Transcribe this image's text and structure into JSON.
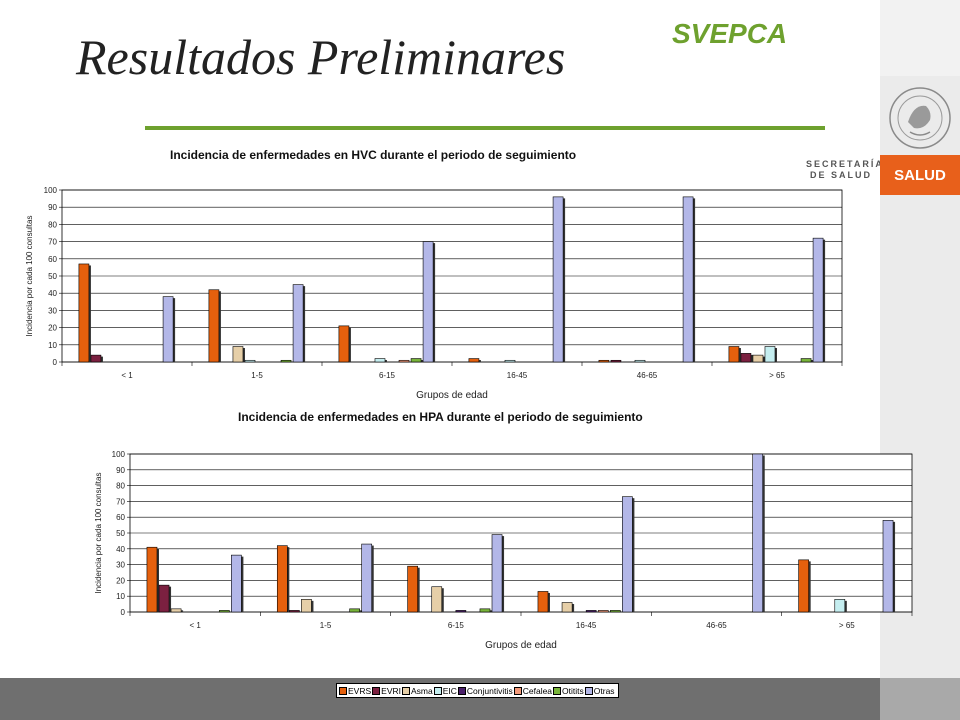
{
  "header": {
    "title": "Resultados Preliminares",
    "brand": "SVEPCA",
    "ministry_line1": "SECRETARÍA",
    "ministry_line2": "DE SALUD",
    "ministry_badge": "SALUD"
  },
  "series_colors": [
    "#e5600d",
    "#7b2040",
    "#e6cfa8",
    "#c5eef0",
    "#4a1f6a",
    "#f49a7a",
    "#78b43a",
    "#b3b7e8"
  ],
  "chart_data": [
    {
      "type": "bar",
      "title": "Incidencia de enfermedades en HVC durante el periodo de seguimiento",
      "xlabel": "Grupos de edad",
      "ylabel": "Incidencia por cada 100 consultas",
      "ylim": [
        0,
        100
      ],
      "yticks": [
        "0",
        "10",
        "20",
        "30",
        "40",
        "50",
        "60",
        "70",
        "80",
        "90",
        "100"
      ],
      "grid": true,
      "categories": [
        "< 1",
        "1-5",
        "6-15",
        "16-45",
        "46-65",
        "> 65"
      ],
      "series": [
        {
          "name": "EVRS",
          "values": [
            57,
            42,
            21,
            2,
            1,
            9
          ]
        },
        {
          "name": "EVRI",
          "values": [
            4,
            0,
            0,
            0,
            1,
            5
          ]
        },
        {
          "name": "Asma",
          "values": [
            0,
            9,
            0,
            0,
            0,
            4
          ]
        },
        {
          "name": "EIC",
          "values": [
            0,
            1,
            2,
            1,
            1,
            9
          ]
        },
        {
          "name": "Conjuntivitis",
          "values": [
            0,
            0,
            0,
            0,
            0,
            0
          ]
        },
        {
          "name": "Cefalea",
          "values": [
            0,
            0,
            1,
            0,
            0,
            0
          ]
        },
        {
          "name": "Otitits",
          "values": [
            0,
            1,
            2,
            0,
            0,
            2
          ]
        },
        {
          "name": "Otras",
          "values": [
            38,
            45,
            70,
            96,
            96,
            72
          ]
        }
      ]
    },
    {
      "type": "bar",
      "title": "Incidencia de enfermedades en HPA durante el periodo de seguimiento",
      "xlabel": "Grupos de edad",
      "ylabel": "Incidencia por cada 100 consultas",
      "ylim": [
        0,
        100
      ],
      "yticks": [
        "0",
        "10",
        "20",
        "30",
        "40",
        "50",
        "60",
        "70",
        "80",
        "90",
        "100"
      ],
      "grid": true,
      "categories": [
        "< 1",
        "1-5",
        "6-15",
        "16-45",
        "46-65",
        "> 65"
      ],
      "series": [
        {
          "name": "EVRS",
          "values": [
            41,
            42,
            29,
            13,
            0,
            33
          ]
        },
        {
          "name": "EVRI",
          "values": [
            17,
            1,
            0,
            0,
            0,
            0
          ]
        },
        {
          "name": "Asma",
          "values": [
            2,
            8,
            16,
            6,
            0,
            0
          ]
        },
        {
          "name": "EIC",
          "values": [
            0,
            0,
            0,
            0,
            0,
            8
          ]
        },
        {
          "name": "Conjuntivitis",
          "values": [
            0,
            0,
            1,
            1,
            0,
            0
          ]
        },
        {
          "name": "Cefalea",
          "values": [
            0,
            0,
            0,
            1,
            0,
            0
          ]
        },
        {
          "name": "Otitits",
          "values": [
            1,
            2,
            2,
            1,
            0,
            0
          ]
        },
        {
          "name": "Otras",
          "values": [
            36,
            43,
            49,
            73,
            100,
            58
          ]
        }
      ]
    }
  ],
  "legend": [
    "EVRS",
    "EVRI",
    "Asma",
    "EIC",
    "Conjuntivitis",
    "Cefalea",
    "Otitits",
    "Otras"
  ]
}
